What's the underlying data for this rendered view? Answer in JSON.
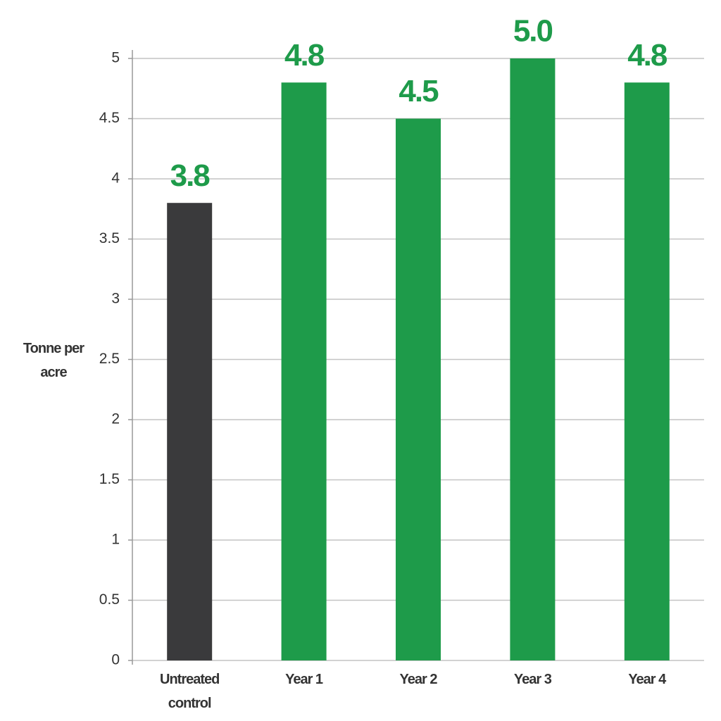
{
  "chart_data": {
    "type": "bar",
    "y_label": "Tonne per acre",
    "categories": [
      "Untreated control",
      "Year 1",
      "Year 2",
      "Year 3",
      "Year 4"
    ],
    "values": [
      3.8,
      4.8,
      4.5,
      5.0,
      4.8
    ],
    "value_labels": [
      "3.8",
      "4.8",
      "4.5",
      "5.0",
      "4.8"
    ],
    "colors": [
      "#3a3a3c",
      "#1e9b4a",
      "#1e9b4a",
      "#1e9b4a",
      "#1e9b4a"
    ],
    "value_label_color": "#1e9b4a",
    "ylim": [
      0,
      5
    ],
    "yticks": [
      0,
      0.5,
      1,
      1.5,
      2,
      2.5,
      3,
      3.5,
      4,
      4.5,
      5
    ],
    "grid": true
  }
}
